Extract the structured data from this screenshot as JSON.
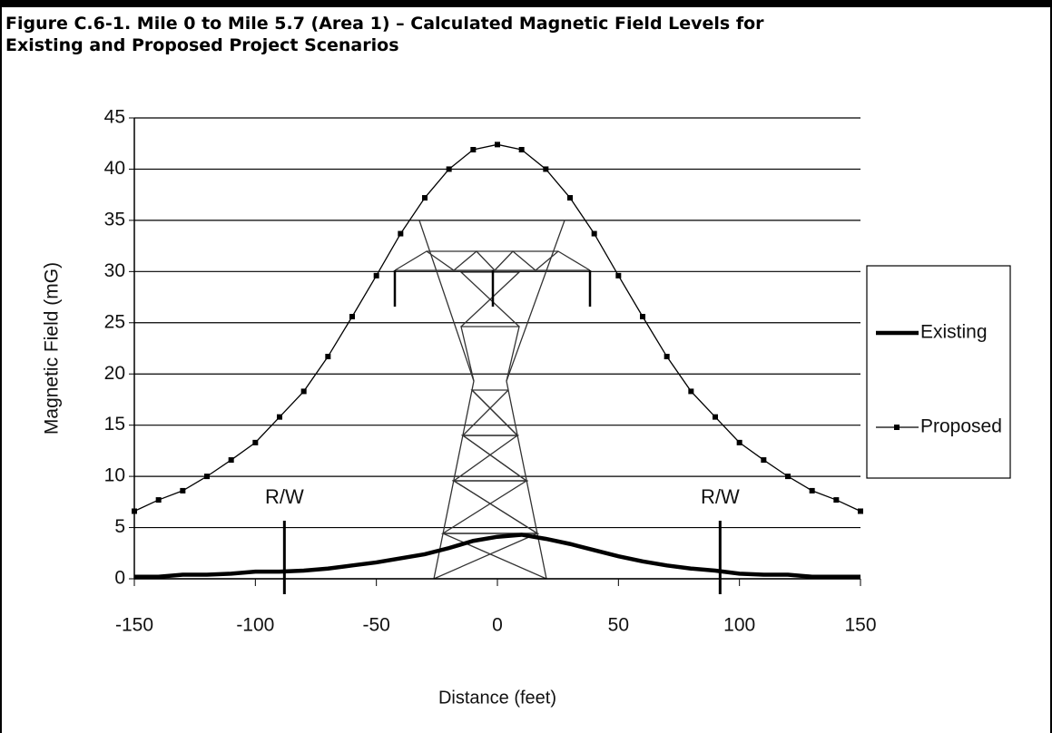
{
  "chart_data": {
    "type": "line",
    "title": [
      "Figure C.6-1. Mile 0 to Mile 5.7 (Area 1) – Calculated Magnetic Field Levels for",
      "Existing and Proposed Project Scenarios"
    ],
    "x_label": "Distance (feet)",
    "y_label": "Magnetic Field (mG)",
    "x": [
      -150,
      -140,
      -130,
      -120,
      -110,
      -100,
      -90,
      -80,
      -70,
      -60,
      -50,
      -40,
      -30,
      -20,
      -10,
      0,
      10,
      20,
      30,
      40,
      50,
      60,
      70,
      80,
      90,
      100,
      110,
      120,
      130,
      140,
      150
    ],
    "series": [
      {
        "name": "Existing",
        "color": "#000000",
        "marker": false,
        "values": [
          0.2,
          0.2,
          0.4,
          0.4,
          0.5,
          0.7,
          0.7,
          0.8,
          1.0,
          1.3,
          1.6,
          2.0,
          2.4,
          3.0,
          3.7,
          4.1,
          4.3,
          3.9,
          3.4,
          2.8,
          2.2,
          1.7,
          1.3,
          1.0,
          0.8,
          0.5,
          0.4,
          0.4,
          0.2,
          0.2,
          0.2
        ]
      },
      {
        "name": "Proposed",
        "color": "#000000",
        "marker": true,
        "values": [
          6.6,
          7.7,
          8.6,
          10,
          11.6,
          13.3,
          15.8,
          18.3,
          21.7,
          25.6,
          29.6,
          33.7,
          37.2,
          40,
          41.9,
          42.4,
          41.9,
          40,
          37.2,
          33.7,
          29.6,
          25.6,
          21.7,
          18.3,
          15.8,
          13.3,
          11.6,
          10,
          8.6,
          7.7,
          6.6
        ]
      }
    ],
    "xlim": [
      -150,
      150
    ],
    "xticks": [
      -150,
      -100,
      -50,
      0,
      50,
      100,
      150
    ],
    "ylim": [
      0,
      45
    ],
    "yticks": [
      0,
      5,
      10,
      15,
      20,
      25,
      30,
      35,
      40,
      45
    ],
    "grid": true,
    "legend": "right",
    "annotations": [
      {
        "text": "R/W",
        "x": -88
      },
      {
        "text": "R/W",
        "x": 92
      }
    ]
  }
}
